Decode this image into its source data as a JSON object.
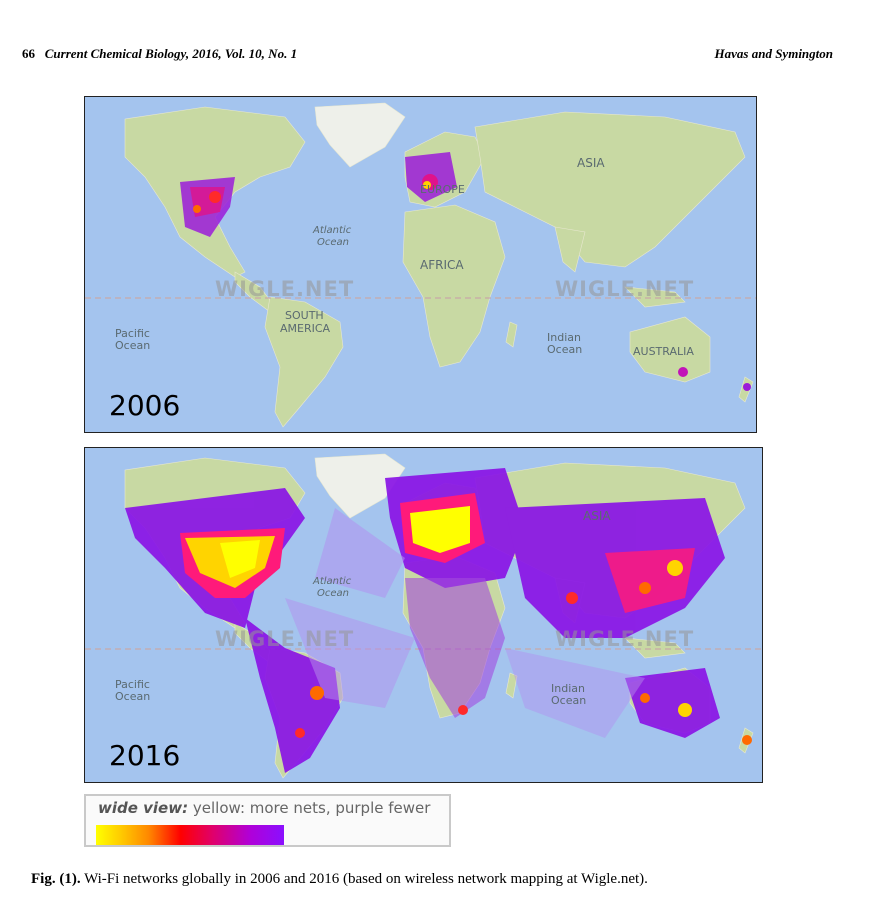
{
  "header": {
    "page_number": "66",
    "journal": "Current Chemical Biology, 2016, Vol. 10, No. 1",
    "authors": "Havas and Symington"
  },
  "figure": {
    "panels": [
      {
        "year": "2006",
        "labels": {
          "asia": "ASIA",
          "atlantic": "Atlantic",
          "atlantic2": "Ocean",
          "africa": "AFRICA",
          "south_america": "SOUTH",
          "south_america2": "AMERICA",
          "pacific": "Pacific",
          "pacific2": "Ocean",
          "indian": "Indian",
          "indian2": "Ocean",
          "australia": "AUSTRALIA",
          "europe": "EUROPE"
        },
        "watermark": "WIGLE.NET"
      },
      {
        "year": "2016",
        "labels": {
          "asia": "ASIA",
          "atlantic": "Atlantic",
          "atlantic2": "Ocean",
          "pacific": "Pacific",
          "pacific2": "Ocean",
          "indian": "Indian",
          "indian2": "Ocean"
        },
        "watermark": "WIGLE.NET"
      }
    ],
    "legend": {
      "emphasis": "wide view:",
      "text": "yellow: more nets, purple fewer",
      "colors": [
        "#ffff00",
        "#ff8800",
        "#ff0000",
        "#b000d8",
        "#8a10ff"
      ]
    },
    "caption": {
      "label": "Fig. (1).",
      "text": "Wi-Fi networks globally in 2006 and 2016 (based on wireless network mapping at Wigle.net)."
    }
  }
}
